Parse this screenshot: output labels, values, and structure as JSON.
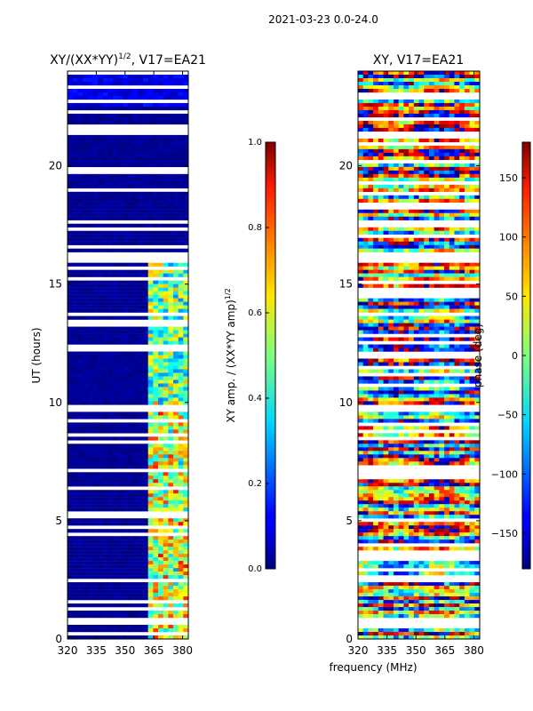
{
  "suptitle": "2021-03-23 0.0-24.0",
  "xlabel": "frequency (MHz)",
  "chart_data": [
    {
      "type": "heatmap",
      "title": "XY/(XX*YY)",
      "title_exp": "1/2",
      "title_suffix": ", V17=EA21",
      "ylabel": "UT (hours)",
      "xlim": [
        320,
        383
      ],
      "ylim": [
        0,
        24
      ],
      "xticks": [
        320,
        335,
        350,
        365,
        380
      ],
      "yticks": [
        0,
        5,
        10,
        15,
        20
      ],
      "colorbar": {
        "label": "XY amp. / (XX*YY amp)",
        "label_exp": "1/2",
        "range": [
          0.0,
          1.0
        ],
        "ticks": [
          "0.0",
          "0.2",
          "0.4",
          "0.6",
          "0.8",
          "1.0"
        ]
      }
    },
    {
      "type": "heatmap",
      "title": "XY, V17=EA21",
      "ylabel": "",
      "xlim": [
        320,
        383
      ],
      "ylim": [
        0,
        24
      ],
      "xticks": [
        320,
        335,
        350,
        365,
        380
      ],
      "yticks": [
        0,
        5,
        10,
        15,
        20
      ],
      "colorbar": {
        "label": "phase (deg)",
        "range": [
          -180,
          180
        ],
        "ticks": [
          "150",
          "100",
          "50",
          "0",
          "−50",
          "−100",
          "−150"
        ]
      }
    }
  ]
}
